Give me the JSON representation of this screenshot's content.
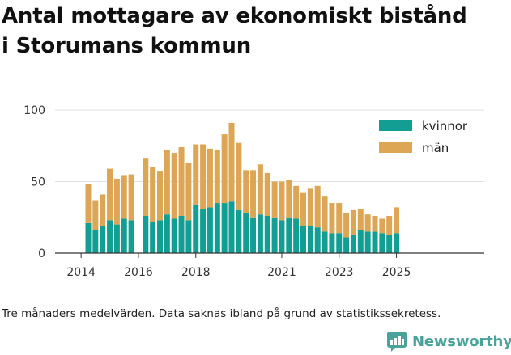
{
  "title_line1": "Antal mottagare av ekonomiskt bistånd",
  "title_line2": "i Storumans kommun",
  "note": "Tre månaders medelvärden. Data saknas ibland på grund av statistikssekretess.",
  "brand": {
    "name": "Newsworthy",
    "color": "#4aa39a"
  },
  "chart_data": {
    "type": "bar",
    "stacked": true,
    "title": "Antal mottagare av ekonomiskt bistånd i Storumans kommun",
    "x_ticks": [
      "2014",
      "2016",
      "2018",
      "2021",
      "2023",
      "2025"
    ],
    "y_ticks": [
      "0",
      "50",
      "100"
    ],
    "ylim": [
      0,
      100
    ],
    "grid": true,
    "legend_position": "top-right",
    "x": [
      "2014-Q2",
      "2014-Q3",
      "2014-Q4",
      "2015-Q1",
      "2015-Q2",
      "2015-Q3",
      "2015-Q4",
      "2016-Q1",
      "2016-Q2",
      "2016-Q3",
      "2016-Q4",
      "2017-Q1",
      "2017-Q2",
      "2017-Q3",
      "2017-Q4",
      "2018-Q1",
      "2018-Q2",
      "2018-Q3",
      "2018-Q4",
      "2019-Q1",
      "2019-Q2",
      "2019-Q3",
      "2019-Q4",
      "2020-Q1",
      "2020-Q2",
      "2020-Q3",
      "2020-Q4",
      "2021-Q1",
      "2021-Q2",
      "2021-Q3",
      "2021-Q4",
      "2022-Q1",
      "2022-Q2",
      "2022-Q3",
      "2022-Q4",
      "2023-Q1",
      "2023-Q2",
      "2023-Q3",
      "2023-Q4",
      "2024-Q1",
      "2024-Q2",
      "2024-Q3",
      "2024-Q4",
      "2025-Q1"
    ],
    "series": [
      {
        "name": "kvinnor",
        "color": "#139e94",
        "values": [
          21,
          16,
          19,
          23,
          20,
          24,
          23,
          null,
          26,
          22,
          23,
          27,
          24,
          26,
          23,
          34,
          31,
          32,
          35,
          35,
          36,
          30,
          28,
          25,
          27,
          26,
          25,
          23,
          25,
          24,
          19,
          19,
          18,
          15,
          14,
          14,
          11,
          13,
          16,
          15,
          15,
          14,
          13,
          14
        ]
      },
      {
        "name": "män",
        "color": "#dca654",
        "values": [
          27,
          21,
          22,
          36,
          32,
          30,
          32,
          null,
          40,
          38,
          34,
          45,
          46,
          48,
          40,
          42,
          45,
          41,
          37,
          48,
          55,
          47,
          30,
          33,
          35,
          30,
          25,
          27,
          26,
          23,
          23,
          26,
          29,
          25,
          21,
          21,
          17,
          17,
          15,
          12,
          11,
          10,
          13,
          18
        ]
      }
    ]
  }
}
